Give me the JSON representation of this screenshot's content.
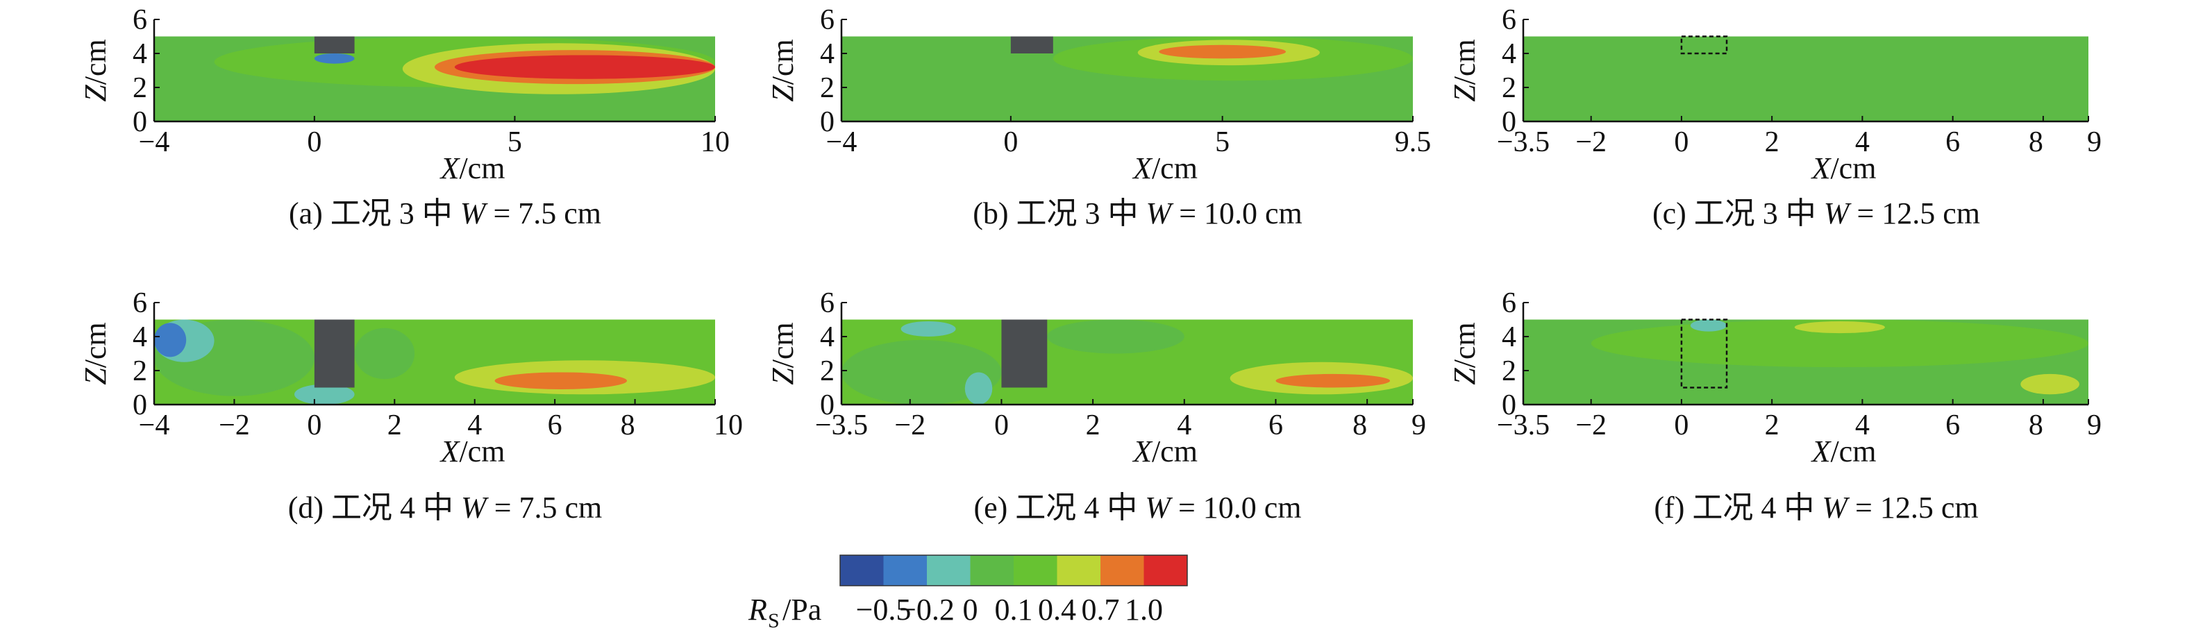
{
  "chart_data": [
    {
      "type": "heatmap",
      "caption": "(a) 工况 3 中 W = 7.5 cm",
      "xlabel": "X/cm",
      "ylabel": "Z/cm",
      "xlim": [
        -4,
        10
      ],
      "ylim": [
        0,
        6
      ],
      "domain_top": 5,
      "x_ticks": [
        -4,
        0,
        5,
        10
      ],
      "y_ticks": [
        0,
        2,
        4,
        6
      ],
      "obstacle": {
        "x": [
          0,
          1
        ],
        "z": [
          4,
          5
        ],
        "style": "solid"
      },
      "field_background": "0 ~ 0.1",
      "regions": [
        {
          "level": "0.1 ~ 0.4",
          "x": [
            -2.5,
            10
          ],
          "z": [
            2.0,
            5.0
          ]
        },
        {
          "level": "0.4 ~ 0.7",
          "x": [
            2.2,
            10
          ],
          "z": [
            1.6,
            4.6
          ]
        },
        {
          "level": "0.7 ~ 1.0",
          "x": [
            3.0,
            10
          ],
          "z": [
            2.2,
            4.2
          ]
        },
        {
          "level": "> 1.0",
          "x": [
            3.5,
            10
          ],
          "z": [
            2.5,
            3.9
          ]
        },
        {
          "level": "-0.5 ~ -0.2",
          "x": [
            0.0,
            1.0
          ],
          "z": [
            3.4,
            4.0
          ]
        }
      ]
    },
    {
      "type": "heatmap",
      "caption": "(b) 工况 3 中 W = 10.0 cm",
      "xlabel": "X/cm",
      "ylabel": "Z/cm",
      "xlim": [
        -4,
        9.5
      ],
      "ylim": [
        0,
        6
      ],
      "domain_top": 5,
      "x_ticks": [
        -4,
        0,
        5,
        9.5
      ],
      "y_ticks": [
        0,
        2,
        4,
        6
      ],
      "obstacle": {
        "x": [
          0,
          1
        ],
        "z": [
          4,
          5
        ],
        "style": "solid"
      },
      "field_background": "0 ~ 0.1",
      "regions": [
        {
          "level": "0.1 ~ 0.4",
          "x": [
            1.0,
            9.5
          ],
          "z": [
            2.4,
            5.0
          ]
        },
        {
          "level": "0.4 ~ 0.7",
          "x": [
            3.0,
            7.3
          ],
          "z": [
            3.3,
            4.8
          ]
        },
        {
          "level": "0.7 ~ 1.0",
          "x": [
            3.5,
            6.5
          ],
          "z": [
            3.7,
            4.5
          ]
        }
      ]
    },
    {
      "type": "heatmap",
      "caption": "(c) 工况 3 中 W = 12.5 cm",
      "xlabel": "X/cm",
      "ylabel": "Z/cm",
      "xlim": [
        -3.5,
        9
      ],
      "ylim": [
        0,
        6
      ],
      "domain_top": 5,
      "x_ticks": [
        -3.5,
        -2,
        0,
        2,
        4,
        6,
        8,
        9
      ],
      "y_ticks": [
        0,
        2,
        4,
        6
      ],
      "obstacle": {
        "x": [
          0,
          1
        ],
        "z": [
          4,
          5
        ],
        "style": "dashed"
      },
      "field_background": "0 ~ 0.1",
      "regions": []
    },
    {
      "type": "heatmap",
      "caption": "(d) 工况 4 中 W = 7.5 cm",
      "xlabel": "X/cm",
      "ylabel": "Z/cm",
      "xlim": [
        -4,
        10
      ],
      "ylim": [
        0,
        6
      ],
      "domain_top": 5,
      "x_ticks": [
        -4,
        -2,
        0,
        2,
        4,
        6,
        8,
        10
      ],
      "y_ticks": [
        0,
        2,
        4,
        6
      ],
      "obstacle": {
        "x": [
          0,
          1
        ],
        "z": [
          1,
          5
        ],
        "style": "solid"
      },
      "field_background": "0.1 ~ 0.4",
      "regions": [
        {
          "level": "0 ~ 0.1",
          "x": [
            -4,
            0
          ],
          "z": [
            0.5,
            5.0
          ]
        },
        {
          "level": "-0.2 ~ 0",
          "x": [
            -4,
            -2.5
          ],
          "z": [
            2.5,
            5.0
          ]
        },
        {
          "level": "-0.5 ~ -0.2",
          "x": [
            -4,
            -3.2
          ],
          "z": [
            2.8,
            4.8
          ]
        },
        {
          "level": "0 ~ 0.1",
          "x": [
            1.0,
            2.5
          ],
          "z": [
            1.5,
            4.5
          ]
        },
        {
          "level": "-0.2 ~ 0",
          "x": [
            -0.5,
            1.0
          ],
          "z": [
            0,
            1.2
          ]
        },
        {
          "level": "0.4 ~ 0.7",
          "x": [
            3.5,
            10
          ],
          "z": [
            0.6,
            2.6
          ]
        },
        {
          "level": "0.7 ~ 1.0",
          "x": [
            4.5,
            7.8
          ],
          "z": [
            0.9,
            1.9
          ]
        }
      ]
    },
    {
      "type": "heatmap",
      "caption": "(e) 工况 4 中 W = 10.0 cm",
      "xlabel": "X/cm",
      "ylabel": "Z/cm",
      "xlim": [
        -3.5,
        9
      ],
      "ylim": [
        0,
        6
      ],
      "domain_top": 5,
      "x_ticks": [
        -3.5,
        -2,
        0,
        2,
        4,
        6,
        8,
        9
      ],
      "y_ticks": [
        0,
        2,
        4,
        6
      ],
      "obstacle": {
        "x": [
          0,
          1
        ],
        "z": [
          1,
          5
        ],
        "style": "solid"
      },
      "field_background": "0.1 ~ 0.4",
      "regions": [
        {
          "level": "0 ~ 0.1",
          "x": [
            -3.5,
            0
          ],
          "z": [
            0,
            3.8
          ]
        },
        {
          "level": "-0.2 ~ 0",
          "x": [
            -2.2,
            -1.0
          ],
          "z": [
            4.0,
            4.9
          ]
        },
        {
          "level": "-0.2 ~ 0",
          "x": [
            -0.8,
            -0.2
          ],
          "z": [
            0,
            1.9
          ]
        },
        {
          "level": "0 ~ 0.1",
          "x": [
            1.0,
            4.0
          ],
          "z": [
            3.0,
            5.0
          ]
        },
        {
          "level": "0.4 ~ 0.7",
          "x": [
            5.0,
            9
          ],
          "z": [
            0.6,
            2.5
          ]
        },
        {
          "level": "0.7 ~ 1.0",
          "x": [
            6.0,
            8.5
          ],
          "z": [
            1.0,
            1.8
          ]
        }
      ]
    },
    {
      "type": "heatmap",
      "caption": "(f) 工况 4 中 W = 12.5 cm",
      "xlabel": "X/cm",
      "ylabel": "Z/cm",
      "xlim": [
        -3.5,
        9
      ],
      "ylim": [
        0,
        6
      ],
      "domain_top": 5,
      "x_ticks": [
        -3.5,
        -2,
        0,
        2,
        4,
        6,
        8,
        9
      ],
      "y_ticks": [
        0,
        2,
        4,
        6
      ],
      "obstacle": {
        "x": [
          0,
          1
        ],
        "z": [
          1,
          5
        ],
        "style": "dashed"
      },
      "field_background": "0 ~ 0.1",
      "regions": [
        {
          "level": "0.1 ~ 0.4",
          "x": [
            -2.0,
            9
          ],
          "z": [
            2.2,
            5.0
          ]
        },
        {
          "level": "0.4 ~ 0.7",
          "x": [
            2.5,
            4.5
          ],
          "z": [
            4.2,
            4.9
          ]
        },
        {
          "level": "0.4 ~ 0.7",
          "x": [
            7.5,
            8.8
          ],
          "z": [
            0.6,
            1.8
          ]
        },
        {
          "level": "-0.2 ~ 0",
          "x": [
            0.2,
            1.0
          ],
          "z": [
            4.3,
            5.0
          ]
        }
      ]
    }
  ],
  "colorbar": {
    "label": "RS/Pa",
    "label_main": "R",
    "label_sub": "S",
    "label_unit": "/Pa",
    "tick_labels": [
      "-0.5",
      "-0.2",
      "0",
      "0.1",
      "0.4",
      "0.7",
      "1.0"
    ],
    "levels": [
      "< -0.5",
      "-0.5 ~ -0.2",
      "-0.2 ~ 0",
      "0 ~ 0.1",
      "0.1 ~ 0.4",
      "0.4 ~ 0.7",
      "0.7 ~ 1.0",
      "> 1.0"
    ],
    "colors": [
      "#2f4f9d",
      "#3e7cc6",
      "#66c2b1",
      "#5dba46",
      "#67c232",
      "#bcd636",
      "#e6762a",
      "#dc2a2a"
    ]
  }
}
